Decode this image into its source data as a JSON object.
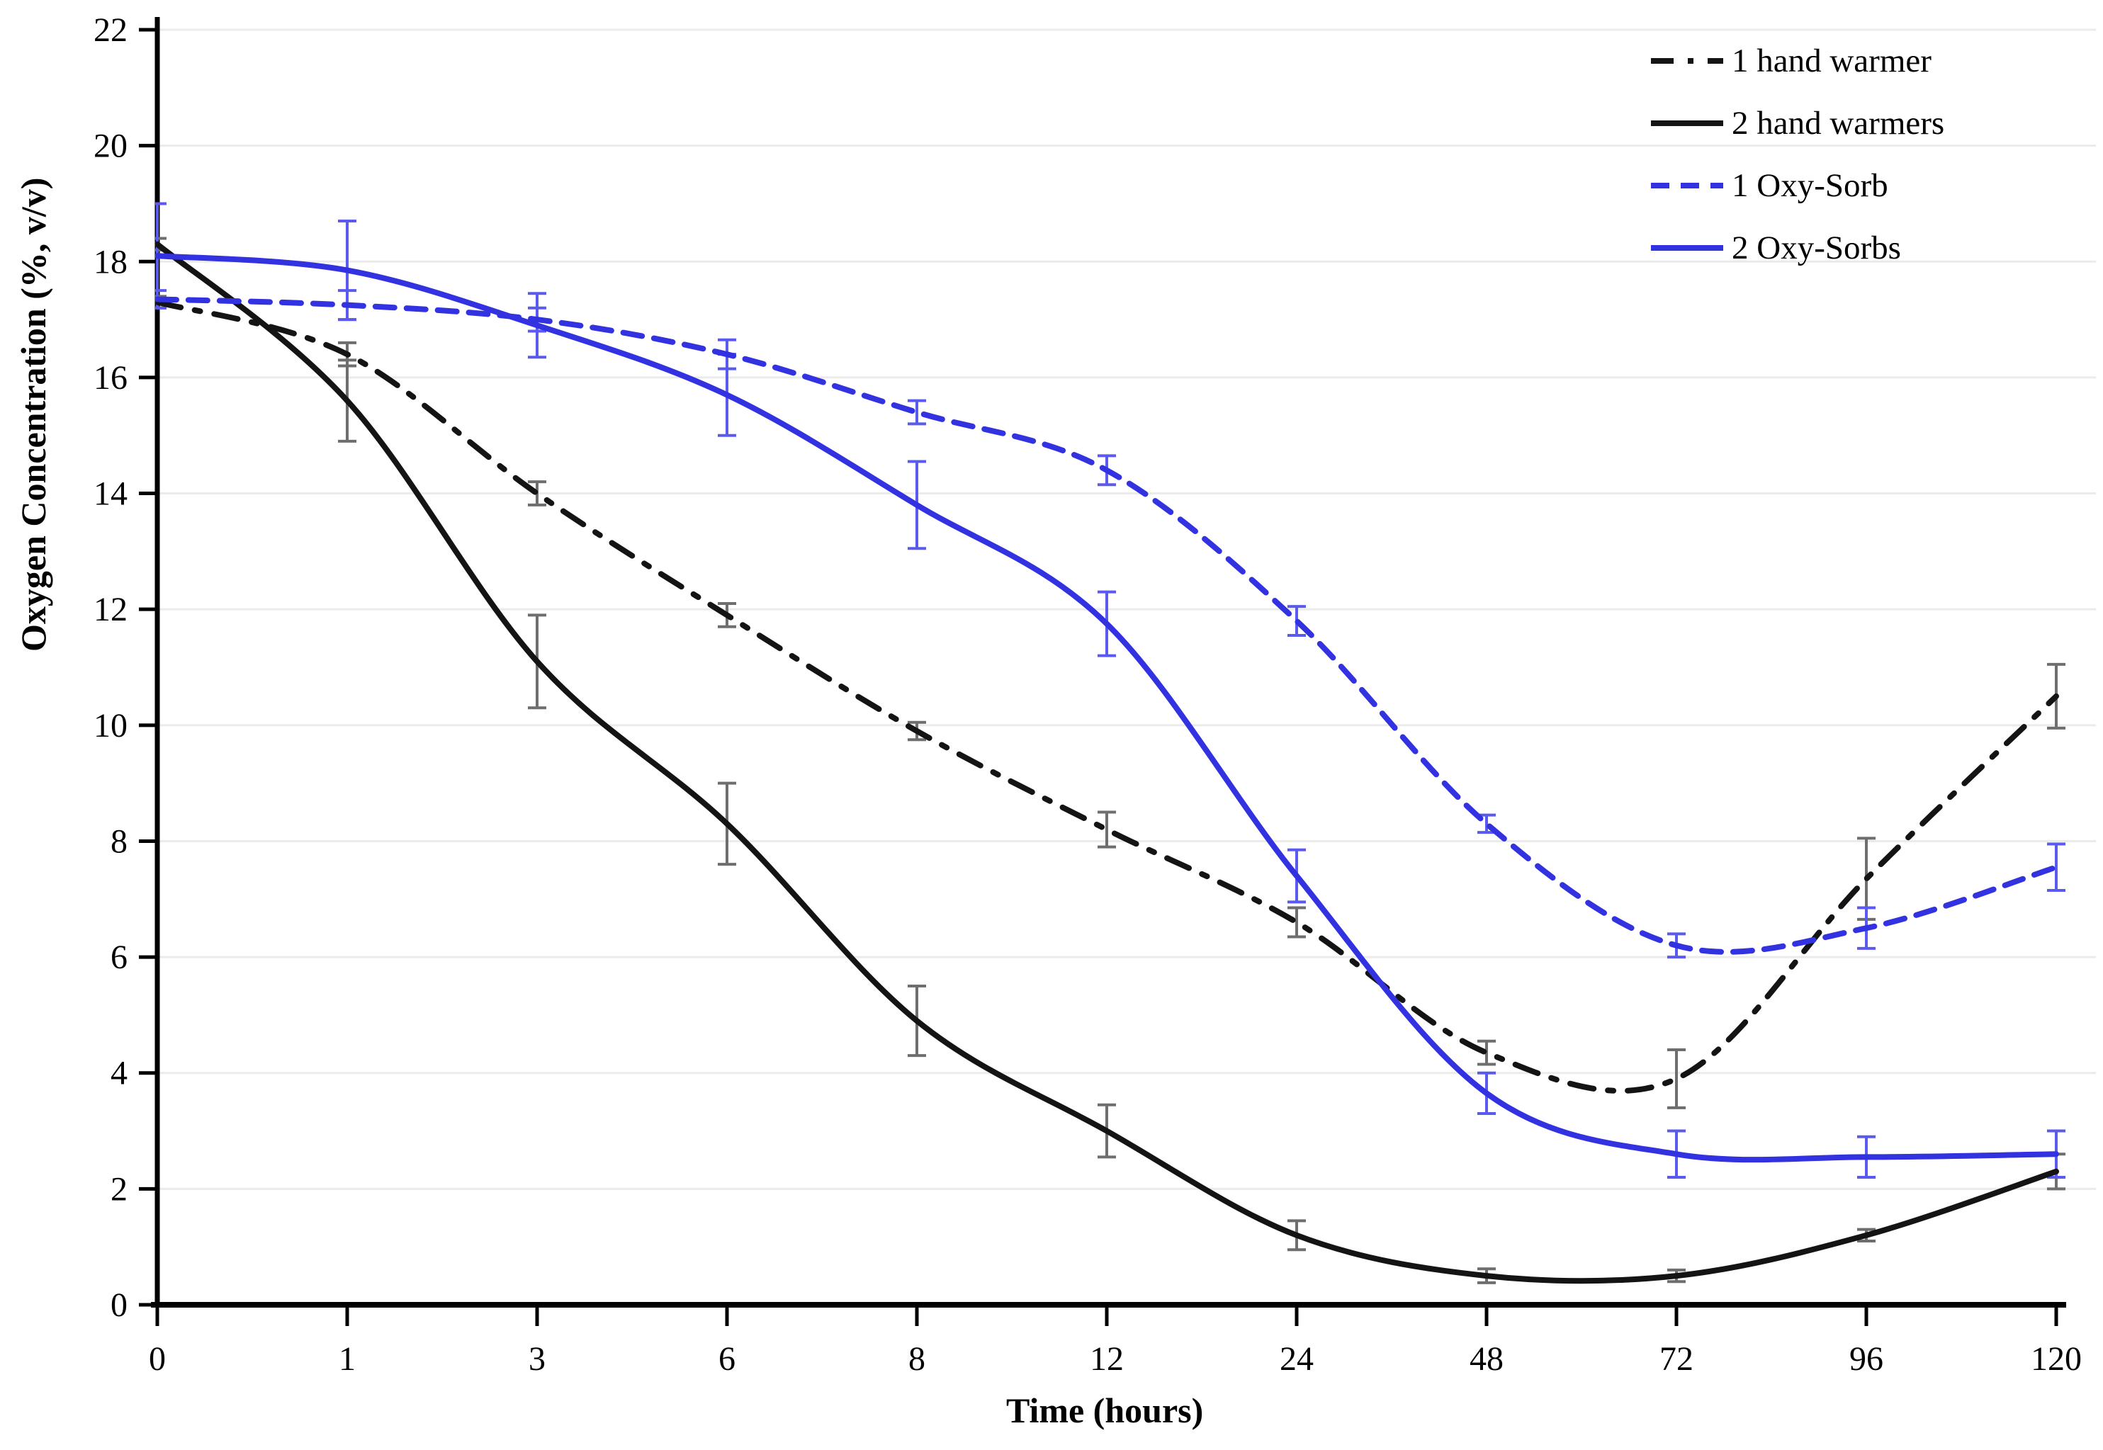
{
  "figure": {
    "background": "#ffffff"
  },
  "chart_data": {
    "type": "line",
    "title": "",
    "xlabel": "Time (hours)",
    "ylabel": "Oxygen Concentration (%, v/v)",
    "categories": [
      "0",
      "1",
      "3",
      "6",
      "8",
      "12",
      "24",
      "48",
      "72",
      "96",
      "120"
    ],
    "yticks": [
      "0",
      "2",
      "4",
      "6",
      "8",
      "10",
      "12",
      "14",
      "16",
      "18",
      "20",
      "22"
    ],
    "ylim": [
      0,
      22
    ],
    "grid": "horizontal",
    "gridline_color": "#ebebeb",
    "axis_color": "#000000",
    "legend_position": "top-right-inside",
    "series": [
      {
        "name": "1 hand warmer",
        "color": "#141414",
        "error_color": "#6e6e6e",
        "style": "dashdot",
        "values": [
          17.3,
          16.4,
          14.0,
          11.9,
          9.9,
          8.2,
          6.6,
          4.35,
          3.9,
          7.35,
          10.5
        ],
        "errors": [
          0.1,
          0.2,
          0.2,
          0.2,
          0.15,
          0.3,
          0.25,
          0.2,
          0.5,
          0.7,
          0.55
        ]
      },
      {
        "name": "2 hand warmers",
        "color": "#141414",
        "error_color": "#6e6e6e",
        "style": "solid",
        "values": [
          18.3,
          15.6,
          11.1,
          8.3,
          4.9,
          3.0,
          1.2,
          0.5,
          0.5,
          1.2,
          2.3
        ],
        "errors": [
          0.1,
          0.7,
          0.8,
          0.7,
          0.6,
          0.45,
          0.25,
          0.12,
          0.1,
          0.1,
          0.3
        ]
      },
      {
        "name": "1 Oxy-Sorb",
        "color": "#3232e0",
        "error_color": "#5a5aee",
        "style": "dashed",
        "values": [
          17.35,
          17.25,
          17.0,
          16.4,
          15.4,
          14.4,
          11.8,
          8.3,
          6.2,
          6.5,
          7.55
        ],
        "errors": [
          0.15,
          0.25,
          0.2,
          0.25,
          0.2,
          0.25,
          0.25,
          0.15,
          0.2,
          0.35,
          0.4
        ]
      },
      {
        "name": "2 Oxy-Sorbs",
        "color": "#3232e0",
        "error_color": "#5a5aee",
        "style": "solid",
        "values": [
          18.1,
          17.85,
          16.9,
          15.7,
          13.8,
          11.75,
          7.4,
          3.65,
          2.6,
          2.55,
          2.6
        ],
        "errors": [
          0.9,
          0.85,
          0.55,
          0.7,
          0.75,
          0.55,
          0.45,
          0.35,
          0.4,
          0.35,
          0.4
        ]
      }
    ]
  }
}
